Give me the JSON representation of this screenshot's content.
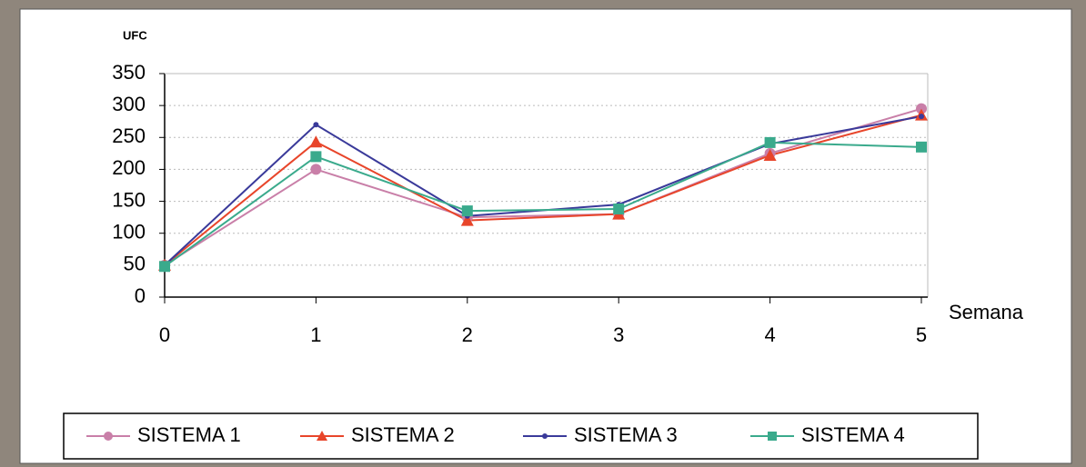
{
  "chart_data": {
    "type": "line",
    "y_label": "UFC",
    "x_label": "Semana",
    "x": [
      0,
      1,
      2,
      3,
      4,
      5
    ],
    "xlim": [
      0,
      5
    ],
    "xticks": [
      0,
      1,
      2,
      3,
      4,
      5
    ],
    "ylim": [
      0,
      350
    ],
    "yticks": [
      0,
      50,
      100,
      150,
      200,
      250,
      300,
      350
    ],
    "grid": true,
    "legend": "bottom",
    "series": [
      {
        "name": "SISTEMA 1",
        "color": "#c97fa8",
        "marker": "circle",
        "values": [
          50,
          200,
          125,
          130,
          225,
          295
        ]
      },
      {
        "name": "SISTEMA 2",
        "color": "#e8452a",
        "marker": "triangle",
        "values": [
          50,
          243,
          120,
          130,
          222,
          285
        ]
      },
      {
        "name": "SISTEMA 3",
        "color": "#3a3a9a",
        "marker": "dot",
        "values": [
          50,
          270,
          127,
          145,
          240,
          283
        ]
      },
      {
        "name": "SISTEMA 4",
        "color": "#3aaa8c",
        "marker": "square",
        "values": [
          48,
          220,
          135,
          138,
          242,
          235
        ]
      }
    ]
  }
}
